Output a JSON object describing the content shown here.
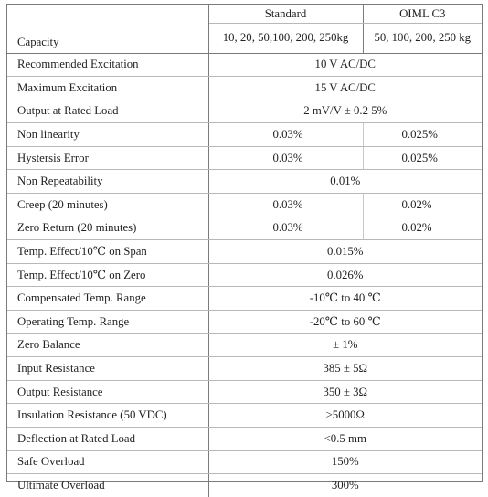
{
  "header": {
    "standard": "Standard",
    "oiml": "OIML C3"
  },
  "rows": [
    {
      "label": "Capacity",
      "standard": "10, 20, 50,100, 200, 250kg",
      "oiml": "50, 100, 200, 250 kg"
    },
    {
      "label": "Recommended Excitation",
      "value": "10 V AC/DC"
    },
    {
      "label": "Maximum Excitation",
      "value": "15 V AC/DC"
    },
    {
      "label": "Output at Rated Load",
      "value": "2 mV/V ± 0.2 5%"
    },
    {
      "label": "Non linearity",
      "standard": "0.03%",
      "oiml": "0.025%"
    },
    {
      "label": "Hystersis Error",
      "standard": "0.03%",
      "oiml": "0.025%"
    },
    {
      "label": "Non Repeatability",
      "value": "0.01%"
    },
    {
      "label": "Creep (20 minutes)",
      "standard": "0.03%",
      "oiml": "0.02%"
    },
    {
      "label": "Zero Return (20 minutes)",
      "standard": "0.03%",
      "oiml": "0.02%"
    },
    {
      "label": "Temp. Effect/10℃ on Span",
      "value": "0.015%"
    },
    {
      "label": "Temp. Effect/10℃ on Zero",
      "value": "0.026%"
    },
    {
      "label": "Compensated Temp. Range",
      "value": "-10℃ to 40 ℃"
    },
    {
      "label": "Operating Temp. Range",
      "value": "-20℃ to 60 ℃"
    },
    {
      "label": "Zero Balance",
      "value": "± 1%"
    },
    {
      "label": "Input Resistance",
      "value": "385 ± 5Ω"
    },
    {
      "label": "Output Resistance",
      "value": "350 ± 3Ω"
    },
    {
      "label": "Insulation Resistance (50 VDC)",
      "value": ">5000Ω"
    },
    {
      "label": "Deflection at Rated Load",
      "value": "<0.5 mm"
    },
    {
      "label": "Safe Overload",
      "value": "150%"
    },
    {
      "label": "Ultimate Overload",
      "value": "300%"
    }
  ]
}
